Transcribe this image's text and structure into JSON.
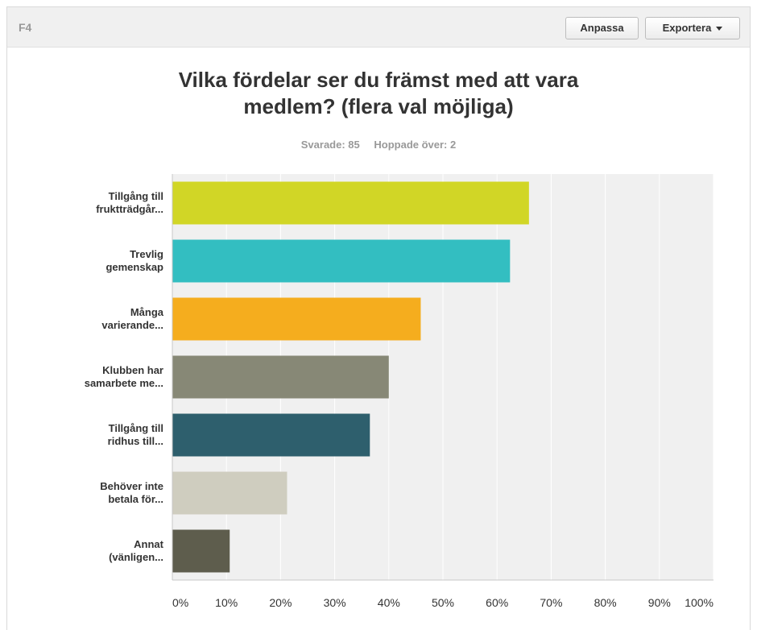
{
  "header": {
    "question_number": "F4",
    "customize_label": "Anpassa",
    "export_label": "Exportera",
    "export_icon": "caret-down-icon"
  },
  "question": {
    "title": "Vilka fördelar ser du främst med att vara\nmedlem? (flera val  möjliga)",
    "answered": "Svarade: 85",
    "skipped": "Hoppade över: 2"
  },
  "chart_data": {
    "type": "bar",
    "orientation": "horizontal",
    "categories": [
      [
        "Tillgång till",
        "fruktträdgår..."
      ],
      [
        "Trevlig",
        "gemenskap"
      ],
      [
        "Många",
        "varierande..."
      ],
      [
        "Klubben har",
        "samarbete me..."
      ],
      [
        "Tillgång till",
        "ridhus till..."
      ],
      [
        "Behöver inte",
        "betala för..."
      ],
      [
        "Annat",
        "(vänligen..."
      ]
    ],
    "values": [
      65.9,
      62.4,
      45.9,
      40.0,
      36.5,
      21.2,
      10.6
    ],
    "colors": [
      "#d1d626",
      "#33bec1",
      "#f5ad1e",
      "#878876",
      "#2e5f6d",
      "#cfcdbf",
      "#5e5d4d"
    ],
    "xlim": [
      0,
      100
    ],
    "xticks": [
      "0%",
      "10%",
      "20%",
      "30%",
      "40%",
      "50%",
      "60%",
      "70%",
      "80%",
      "90%",
      "100%"
    ],
    "grid": true,
    "plot_background": "#f0f0f0"
  }
}
